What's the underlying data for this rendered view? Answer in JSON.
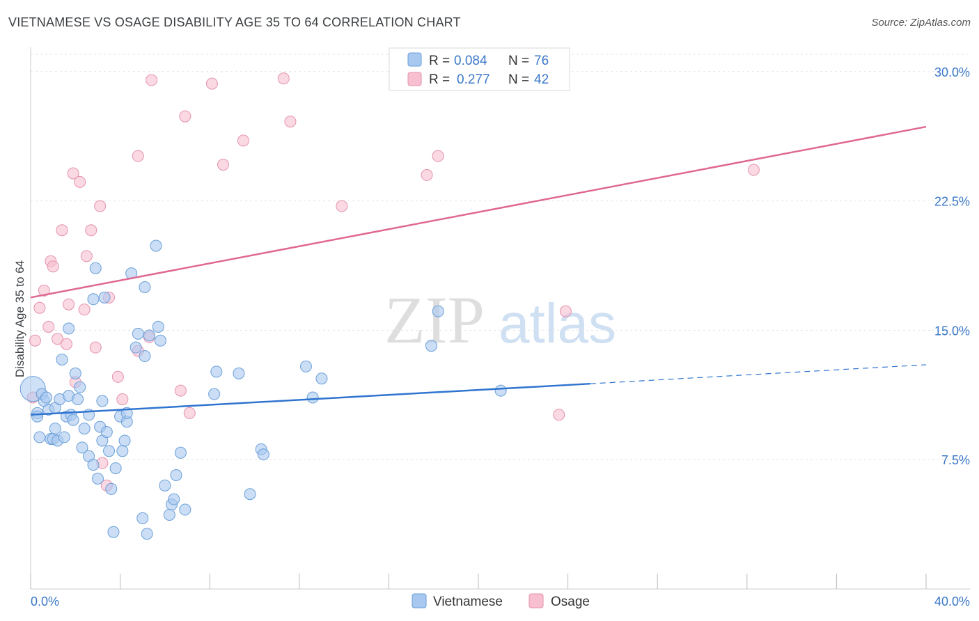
{
  "title": "VIETNAMESE VS OSAGE DISABILITY AGE 35 TO 64 CORRELATION CHART",
  "source": "Source: ZipAtlas.com",
  "watermark": {
    "zip": "ZIP",
    "atlas": "atlas"
  },
  "colors": {
    "vietnamese_fill": "#a8c8f0",
    "vietnamese_stroke": "#6a9fd8",
    "vietnamese_line": "#2f74cf",
    "osage_fill": "#f7bfd0",
    "osage_stroke": "#e592ae",
    "osage_line": "#e06892",
    "axis_label": "#3a78c9",
    "grid": "#e3e3e3"
  },
  "legend": {
    "rows": [
      {
        "r_label": "R = ",
        "r_value": "0.084",
        "n_label": "N = ",
        "n_value": "76"
      },
      {
        "r_label": "R = ",
        "r_value": "0.277",
        "n_label": "N = ",
        "n_value": "42"
      }
    ]
  },
  "chart_data": {
    "type": "scatter",
    "title": "VIETNAMESE VS OSAGE DISABILITY AGE 35 TO 64 CORRELATION CHART",
    "xlabel": "",
    "ylabel": "Disability Age 35 to 64",
    "xlim": [
      0,
      40
    ],
    "ylim": [
      0,
      31
    ],
    "x_tick_labels": [
      "0.0%",
      "40.0%"
    ],
    "y_ticks": [
      7.5,
      15.0,
      22.5,
      30.0
    ],
    "y_tick_labels": [
      "7.5%",
      "15.0%",
      "22.5%",
      "30.0%"
    ],
    "series": [
      {
        "name": "Vietnamese",
        "r": 0.084,
        "n": 76,
        "trend": {
          "x0": 0,
          "y0": 10.1,
          "x1": 25,
          "y1": 11.9,
          "dash_x1": 40,
          "dash_y1": 13.0
        },
        "points": [
          [
            0.1,
            11.6
          ],
          [
            0.3,
            10.2
          ],
          [
            0.3,
            10.0
          ],
          [
            0.4,
            8.8
          ],
          [
            0.5,
            11.3
          ],
          [
            0.6,
            10.9
          ],
          [
            0.7,
            11.1
          ],
          [
            0.8,
            10.4
          ],
          [
            0.9,
            8.7
          ],
          [
            1.0,
            8.7
          ],
          [
            1.1,
            10.5
          ],
          [
            1.1,
            9.3
          ],
          [
            1.2,
            8.6
          ],
          [
            1.3,
            11.0
          ],
          [
            1.4,
            13.3
          ],
          [
            1.5,
            8.8
          ],
          [
            1.6,
            10.0
          ],
          [
            1.7,
            11.2
          ],
          [
            1.7,
            15.1
          ],
          [
            1.8,
            10.1
          ],
          [
            1.9,
            9.8
          ],
          [
            2.0,
            12.5
          ],
          [
            2.1,
            11.0
          ],
          [
            2.2,
            11.7
          ],
          [
            2.3,
            8.2
          ],
          [
            2.4,
            9.3
          ],
          [
            2.6,
            10.1
          ],
          [
            2.6,
            7.7
          ],
          [
            2.8,
            16.8
          ],
          [
            2.8,
            7.2
          ],
          [
            2.9,
            18.6
          ],
          [
            3.0,
            6.4
          ],
          [
            3.1,
            9.4
          ],
          [
            3.2,
            8.6
          ],
          [
            3.2,
            10.9
          ],
          [
            3.3,
            16.9
          ],
          [
            3.4,
            9.1
          ],
          [
            3.5,
            8.0
          ],
          [
            3.6,
            5.8
          ],
          [
            3.7,
            3.3
          ],
          [
            3.8,
            7.0
          ],
          [
            4.0,
            10.0
          ],
          [
            4.1,
            8.0
          ],
          [
            4.2,
            8.6
          ],
          [
            4.3,
            9.7
          ],
          [
            4.3,
            10.2
          ],
          [
            4.5,
            18.3
          ],
          [
            4.7,
            14.0
          ],
          [
            4.8,
            14.8
          ],
          [
            5.0,
            4.1
          ],
          [
            5.1,
            17.5
          ],
          [
            5.1,
            13.5
          ],
          [
            5.2,
            3.2
          ],
          [
            5.3,
            14.7
          ],
          [
            5.6,
            19.9
          ],
          [
            5.7,
            15.2
          ],
          [
            5.8,
            14.4
          ],
          [
            6.0,
            6.0
          ],
          [
            6.2,
            4.3
          ],
          [
            6.3,
            4.9
          ],
          [
            6.4,
            5.2
          ],
          [
            6.5,
            6.6
          ],
          [
            6.7,
            7.9
          ],
          [
            6.9,
            4.6
          ],
          [
            8.2,
            11.3
          ],
          [
            8.3,
            12.6
          ],
          [
            9.3,
            12.5
          ],
          [
            9.8,
            5.5
          ],
          [
            10.3,
            8.1
          ],
          [
            10.4,
            7.8
          ],
          [
            12.3,
            12.9
          ],
          [
            12.6,
            11.1
          ],
          [
            13.0,
            12.2
          ],
          [
            17.9,
            14.1
          ],
          [
            18.2,
            16.1
          ],
          [
            21.0,
            11.5
          ]
        ]
      },
      {
        "name": "Osage",
        "r": 0.277,
        "n": 42,
        "trend": {
          "x0": 0,
          "y0": 16.9,
          "x1": 40,
          "y1": 26.8
        },
        "points": [
          [
            0.1,
            11.1
          ],
          [
            0.2,
            14.4
          ],
          [
            0.4,
            16.3
          ],
          [
            0.6,
            17.3
          ],
          [
            0.8,
            15.2
          ],
          [
            0.9,
            19.0
          ],
          [
            1.0,
            18.7
          ],
          [
            1.2,
            14.5
          ],
          [
            1.4,
            20.8
          ],
          [
            1.6,
            14.2
          ],
          [
            1.7,
            16.5
          ],
          [
            1.9,
            24.1
          ],
          [
            2.0,
            12.0
          ],
          [
            2.2,
            23.6
          ],
          [
            2.4,
            16.2
          ],
          [
            2.5,
            19.3
          ],
          [
            2.7,
            20.8
          ],
          [
            2.9,
            14.0
          ],
          [
            3.1,
            22.2
          ],
          [
            3.2,
            7.3
          ],
          [
            3.4,
            6.0
          ],
          [
            3.5,
            16.9
          ],
          [
            3.9,
            12.3
          ],
          [
            4.1,
            11.0
          ],
          [
            4.8,
            13.8
          ],
          [
            4.8,
            25.1
          ],
          [
            5.3,
            14.6
          ],
          [
            5.4,
            29.5
          ],
          [
            6.7,
            11.5
          ],
          [
            6.9,
            27.4
          ],
          [
            7.1,
            10.2
          ],
          [
            8.1,
            29.3
          ],
          [
            8.6,
            24.6
          ],
          [
            9.5,
            26.0
          ],
          [
            11.3,
            29.6
          ],
          [
            11.6,
            27.1
          ],
          [
            13.9,
            22.2
          ],
          [
            17.7,
            24.0
          ],
          [
            18.2,
            25.1
          ],
          [
            23.6,
            10.1
          ],
          [
            23.9,
            16.1
          ],
          [
            32.3,
            24.3
          ]
        ]
      }
    ]
  }
}
